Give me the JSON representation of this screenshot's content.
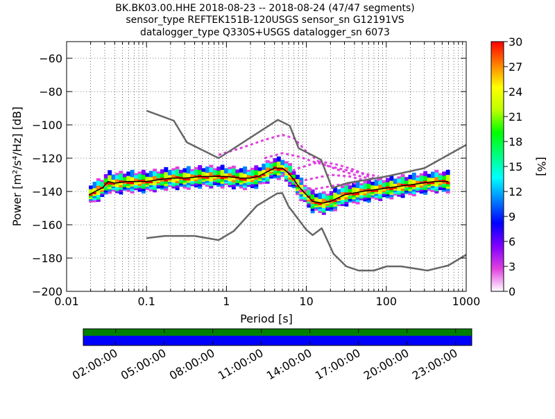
{
  "title_lines": [
    "BK.BK03.00.HHE   2018-08-23 -- 2018-08-24  (47/47 segments)",
    "sensor_type REFTEK151B-120USGS sensor_sn G12191VS",
    "datalogger_type Q330S+USGS datalogger_sn 6073"
  ],
  "chart_data": {
    "type": "heatmap",
    "x_scale": "log",
    "xlim": [
      0.01,
      1000
    ],
    "ylim": [
      -200,
      -50
    ],
    "xlabel": "Period [s]",
    "ylabel": "Power [m²/s⁴/Hz] [dB]",
    "x_ticks": [
      0.01,
      0.1,
      1,
      10,
      100,
      1000
    ],
    "x_tick_labels": [
      "0.01",
      "0.1",
      "1",
      "10",
      "100",
      "1000"
    ],
    "y_ticks": [
      -200,
      -180,
      -160,
      -140,
      -120,
      -100,
      -80,
      -60
    ],
    "y_tick_labels": [
      "−200",
      "−180",
      "−160",
      "−140",
      "−120",
      "−100",
      "−80",
      "−60"
    ],
    "grid": true,
    "colorbar": {
      "label": "[%]",
      "range": [
        0,
        30
      ],
      "ticks": [
        0,
        3,
        6,
        9,
        12,
        15,
        18,
        21,
        24,
        27,
        30
      ],
      "tick_labels": [
        "0",
        "3",
        "6",
        "9",
        "12",
        "15",
        "18",
        "21",
        "24",
        "27",
        "30"
      ],
      "colormap": [
        "#ffffff",
        "#e040e0",
        "#8000ff",
        "#0000ff",
        "#0080ff",
        "#00ffff",
        "#00ff80",
        "#00ff00",
        "#c0ff00",
        "#ffff00",
        "#ff8000",
        "#ff0000"
      ]
    },
    "reference_curves": [
      {
        "kind": "high-noise-model",
        "color": "#666666",
        "points": [
          [
            0.1,
            -91.5
          ],
          [
            0.22,
            -97.5
          ],
          [
            0.32,
            -110.5
          ],
          [
            0.8,
            -120
          ],
          [
            4.4,
            -97
          ],
          [
            6.2,
            -100.5
          ],
          [
            8,
            -114
          ],
          [
            15.3,
            -121
          ],
          [
            21,
            -138
          ],
          [
            32,
            -135
          ],
          [
            100,
            -131
          ],
          [
            300,
            -126
          ],
          [
            1000,
            -112
          ]
        ]
      },
      {
        "kind": "low-noise-model",
        "color": "#666666",
        "points": [
          [
            0.1,
            -168
          ],
          [
            0.17,
            -166.7
          ],
          [
            0.4,
            -166.7
          ],
          [
            0.8,
            -169.2
          ],
          [
            1.24,
            -163.7
          ],
          [
            2.4,
            -148.6
          ],
          [
            4.3,
            -141.2
          ],
          [
            5.0,
            -141.0
          ],
          [
            6.0,
            -149.0
          ],
          [
            10,
            -163.0
          ],
          [
            12,
            -166.2
          ],
          [
            15.6,
            -162.1
          ],
          [
            21.9,
            -177.5
          ],
          [
            31.6,
            -185.0
          ],
          [
            45,
            -187.5
          ],
          [
            70,
            -187.5
          ],
          [
            101,
            -185.0
          ],
          [
            154,
            -185.0
          ],
          [
            328,
            -187.5
          ],
          [
            600,
            -184.4
          ],
          [
            1000,
            -178
          ]
        ]
      }
    ],
    "mode_line": {
      "color": "#000000",
      "points": [
        [
          0.019,
          -142
        ],
        [
          0.025,
          -139
        ],
        [
          0.028,
          -138
        ],
        [
          0.033,
          -134
        ],
        [
          0.04,
          -135
        ],
        [
          0.06,
          -134
        ],
        [
          0.1,
          -134
        ],
        [
          0.2,
          -132
        ],
        [
          0.3,
          -132
        ],
        [
          0.5,
          -131
        ],
        [
          1,
          -131
        ],
        [
          1.5,
          -132
        ],
        [
          2,
          -132
        ],
        [
          2.5,
          -131
        ],
        [
          3,
          -129
        ],
        [
          4,
          -126
        ],
        [
          5,
          -126
        ],
        [
          6,
          -129
        ],
        [
          7,
          -133
        ],
        [
          8,
          -137
        ],
        [
          10,
          -142
        ],
        [
          12,
          -146
        ],
        [
          16,
          -147
        ],
        [
          20,
          -146
        ],
        [
          30,
          -142
        ],
        [
          50,
          -140
        ],
        [
          100,
          -138
        ],
        [
          200,
          -136
        ],
        [
          400,
          -134
        ],
        [
          600,
          -134
        ]
      ]
    },
    "excursion_curves": [
      {
        "color": "#e040e0",
        "points": [
          [
            0.8,
            -118
          ],
          [
            1.5,
            -114
          ],
          [
            3,
            -109
          ],
          [
            5,
            -106
          ],
          [
            7,
            -108
          ],
          [
            10,
            -116
          ],
          [
            15,
            -123
          ],
          [
            25,
            -127
          ],
          [
            40,
            -130
          ],
          [
            70,
            -133
          ]
        ]
      },
      {
        "color": "#e040e0",
        "points": [
          [
            3,
            -120
          ],
          [
            5,
            -117
          ],
          [
            8,
            -119
          ],
          [
            12,
            -122
          ],
          [
            20,
            -125
          ],
          [
            30,
            -127
          ],
          [
            50,
            -129
          ],
          [
            80,
            -131
          ]
        ]
      },
      {
        "color": "#e040e0",
        "points": [
          [
            5,
            -130
          ],
          [
            8,
            -126
          ],
          [
            15,
            -122
          ],
          [
            25,
            -124
          ],
          [
            40,
            -127
          ],
          [
            60,
            -131
          ],
          [
            100,
            -135
          ]
        ]
      },
      {
        "color": "#e040e0",
        "points": [
          [
            6,
            -136
          ],
          [
            10,
            -133
          ],
          [
            20,
            -130
          ],
          [
            35,
            -131
          ],
          [
            60,
            -134
          ]
        ]
      },
      {
        "color": "#e040e0",
        "points": [
          [
            8,
            -140
          ],
          [
            15,
            -138
          ],
          [
            25,
            -136
          ],
          [
            45,
            -135
          ]
        ]
      }
    ],
    "ppsd_band": {
      "min_period": 0.019,
      "max_period": 620,
      "half_width_db": 5
    },
    "time_axis": {
      "tick_labels": [
        "02:00:00",
        "05:00:00",
        "08:00:00",
        "11:00:00",
        "14:00:00",
        "17:00:00",
        "20:00:00",
        "23:00:00"
      ],
      "tick_hours": [
        2,
        5,
        8,
        11,
        14,
        17,
        20,
        23
      ],
      "range_hours": [
        0,
        24
      ],
      "segments": 47,
      "coverage_colors": {
        "data": "#008000",
        "used": "#0000ff"
      }
    }
  }
}
